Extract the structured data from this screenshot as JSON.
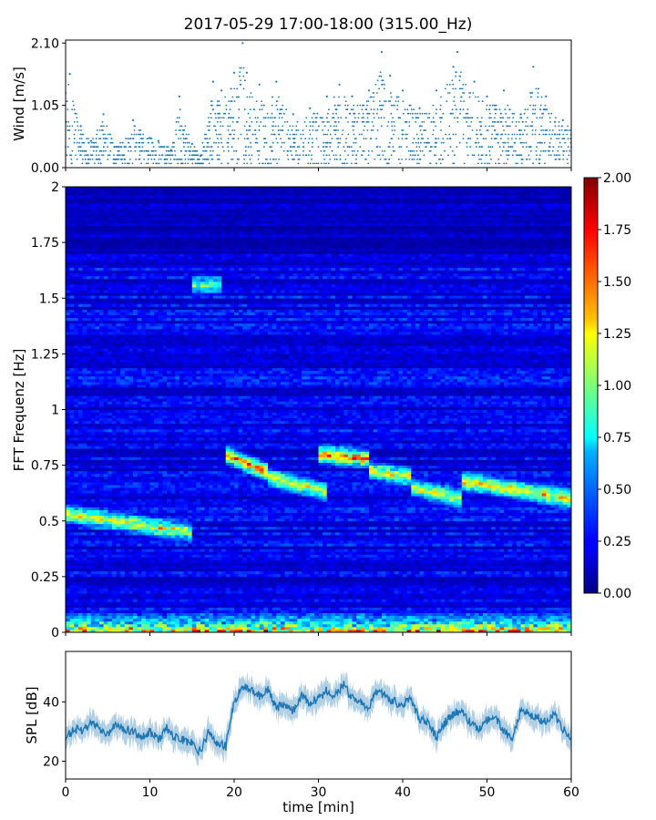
{
  "figure": {
    "title": "2017-05-29 17:00-18:00 (315.00_Hz)"
  },
  "chart_data": [
    {
      "type": "scatter",
      "panel": "wind",
      "ylabel": "Wind [m/s]",
      "xlabel": "",
      "xlim": [
        0,
        60
      ],
      "ylim": [
        0,
        2.15
      ],
      "yticks": [
        "0.00",
        "1.05",
        "2.10"
      ],
      "marker_color": "#1f77b4",
      "points": [
        {
          "x": 0.5,
          "y": 1.58
        },
        {
          "x": 1.8,
          "y": 0.7
        },
        {
          "x": 3.0,
          "y": 0.45
        },
        {
          "x": 4.5,
          "y": 0.9
        },
        {
          "x": 6.0,
          "y": 0.35
        },
        {
          "x": 8.0,
          "y": 0.8
        },
        {
          "x": 10.0,
          "y": 0.5
        },
        {
          "x": 11.0,
          "y": 0.45
        },
        {
          "x": 12.5,
          "y": 0.3
        },
        {
          "x": 13.5,
          "y": 1.2
        },
        {
          "x": 15.0,
          "y": 0.4
        },
        {
          "x": 16.0,
          "y": 0.2
        },
        {
          "x": 17.5,
          "y": 1.45
        },
        {
          "x": 18.5,
          "y": 1.3
        },
        {
          "x": 20.0,
          "y": 1.6
        },
        {
          "x": 21.0,
          "y": 2.1
        },
        {
          "x": 21.5,
          "y": 1.6
        },
        {
          "x": 23.0,
          "y": 1.4
        },
        {
          "x": 25.0,
          "y": 1.45
        },
        {
          "x": 27.0,
          "y": 0.9
        },
        {
          "x": 29.0,
          "y": 1.0
        },
        {
          "x": 31.0,
          "y": 1.2
        },
        {
          "x": 32.5,
          "y": 1.4
        },
        {
          "x": 34.0,
          "y": 1.2
        },
        {
          "x": 36.0,
          "y": 1.3
        },
        {
          "x": 37.5,
          "y": 1.95
        },
        {
          "x": 38.5,
          "y": 1.55
        },
        {
          "x": 40.0,
          "y": 1.3
        },
        {
          "x": 42.0,
          "y": 1.0
        },
        {
          "x": 44.0,
          "y": 1.3
        },
        {
          "x": 46.0,
          "y": 1.7
        },
        {
          "x": 46.5,
          "y": 1.95
        },
        {
          "x": 48.5,
          "y": 1.45
        },
        {
          "x": 50.0,
          "y": 1.2
        },
        {
          "x": 52.0,
          "y": 1.3
        },
        {
          "x": 54.0,
          "y": 0.9
        },
        {
          "x": 55.5,
          "y": 1.7
        },
        {
          "x": 57.0,
          "y": 1.2
        },
        {
          "x": 59.0,
          "y": 0.8
        }
      ]
    },
    {
      "type": "heatmap",
      "panel": "spectrogram",
      "ylabel": "FFT Frequenz [Hz]",
      "xlabel": "",
      "xlim": [
        0,
        60
      ],
      "ylim": [
        0,
        2
      ],
      "yticks": [
        "0",
        "0.25",
        "0.5",
        "0.75",
        "1",
        "1.25",
        "1.5",
        "1.75",
        "2"
      ],
      "colormap": "jet",
      "colorbar": {
        "min": 0,
        "max": 2,
        "ticks": [
          "0.00",
          "0.25",
          "0.50",
          "0.75",
          "1.00",
          "1.25",
          "1.50",
          "1.75",
          "2.00"
        ]
      },
      "background_level": 0.25,
      "bands": [
        {
          "x_start": 0,
          "x_end": 15,
          "freq_start": 0.53,
          "freq_end": 0.45,
          "level": 1.2
        },
        {
          "x_start": 15,
          "x_end": 18.5,
          "freq_start": 1.56,
          "freq_end": 1.56,
          "level": 0.9
        },
        {
          "x_start": 19,
          "x_end": 24,
          "freq_start": 0.8,
          "freq_end": 0.72,
          "level": 1.5
        },
        {
          "x_start": 24,
          "x_end": 31,
          "freq_start": 0.7,
          "freq_end": 0.63,
          "level": 1.1
        },
        {
          "x_start": 30,
          "x_end": 36,
          "freq_start": 0.8,
          "freq_end": 0.78,
          "level": 1.6
        },
        {
          "x_start": 36,
          "x_end": 41,
          "freq_start": 0.73,
          "freq_end": 0.7,
          "level": 1.2
        },
        {
          "x_start": 41,
          "x_end": 47,
          "freq_start": 0.65,
          "freq_end": 0.6,
          "level": 1.1
        },
        {
          "x_start": 47,
          "x_end": 60,
          "freq_start": 0.68,
          "freq_end": 0.6,
          "level": 1.3
        }
      ],
      "low_freq_activity": {
        "freq_max": 0.12,
        "level": 1.5
      }
    },
    {
      "type": "line",
      "panel": "spl",
      "ylabel": "SPL [dB]",
      "xlabel": "time [min]",
      "xlim": [
        0,
        60
      ],
      "ylim": [
        14,
        57
      ],
      "yticks": [
        20,
        40
      ],
      "xticks": [
        0,
        10,
        20,
        30,
        40,
        50,
        60
      ],
      "line_color": "#1f77b4",
      "series": [
        {
          "x": [
            0,
            1,
            2,
            3,
            4,
            5,
            6,
            7,
            8,
            9,
            10,
            11,
            12,
            13,
            14,
            15,
            16,
            17,
            18,
            19,
            20,
            21,
            22,
            23,
            24,
            25,
            26,
            27,
            28,
            29,
            30,
            31,
            32,
            33,
            34,
            35,
            36,
            37,
            38,
            39,
            40,
            41,
            42,
            43,
            44,
            45,
            46,
            47,
            48,
            49,
            50,
            51,
            52,
            53,
            54,
            55,
            56,
            57,
            58,
            59,
            60
          ],
          "y": [
            28,
            31,
            30,
            33,
            31,
            29,
            33,
            31,
            30,
            28,
            30,
            27,
            31,
            28,
            27,
            26,
            23,
            30,
            26,
            25,
            40,
            45,
            44,
            42,
            44,
            38,
            39,
            37,
            42,
            40,
            41,
            44,
            42,
            46,
            41,
            40,
            38,
            44,
            42,
            40,
            39,
            41,
            34,
            33,
            28,
            33,
            36,
            37,
            33,
            31,
            34,
            35,
            30,
            28,
            37,
            36,
            35,
            33,
            36,
            31,
            28
          ]
        }
      ]
    }
  ]
}
